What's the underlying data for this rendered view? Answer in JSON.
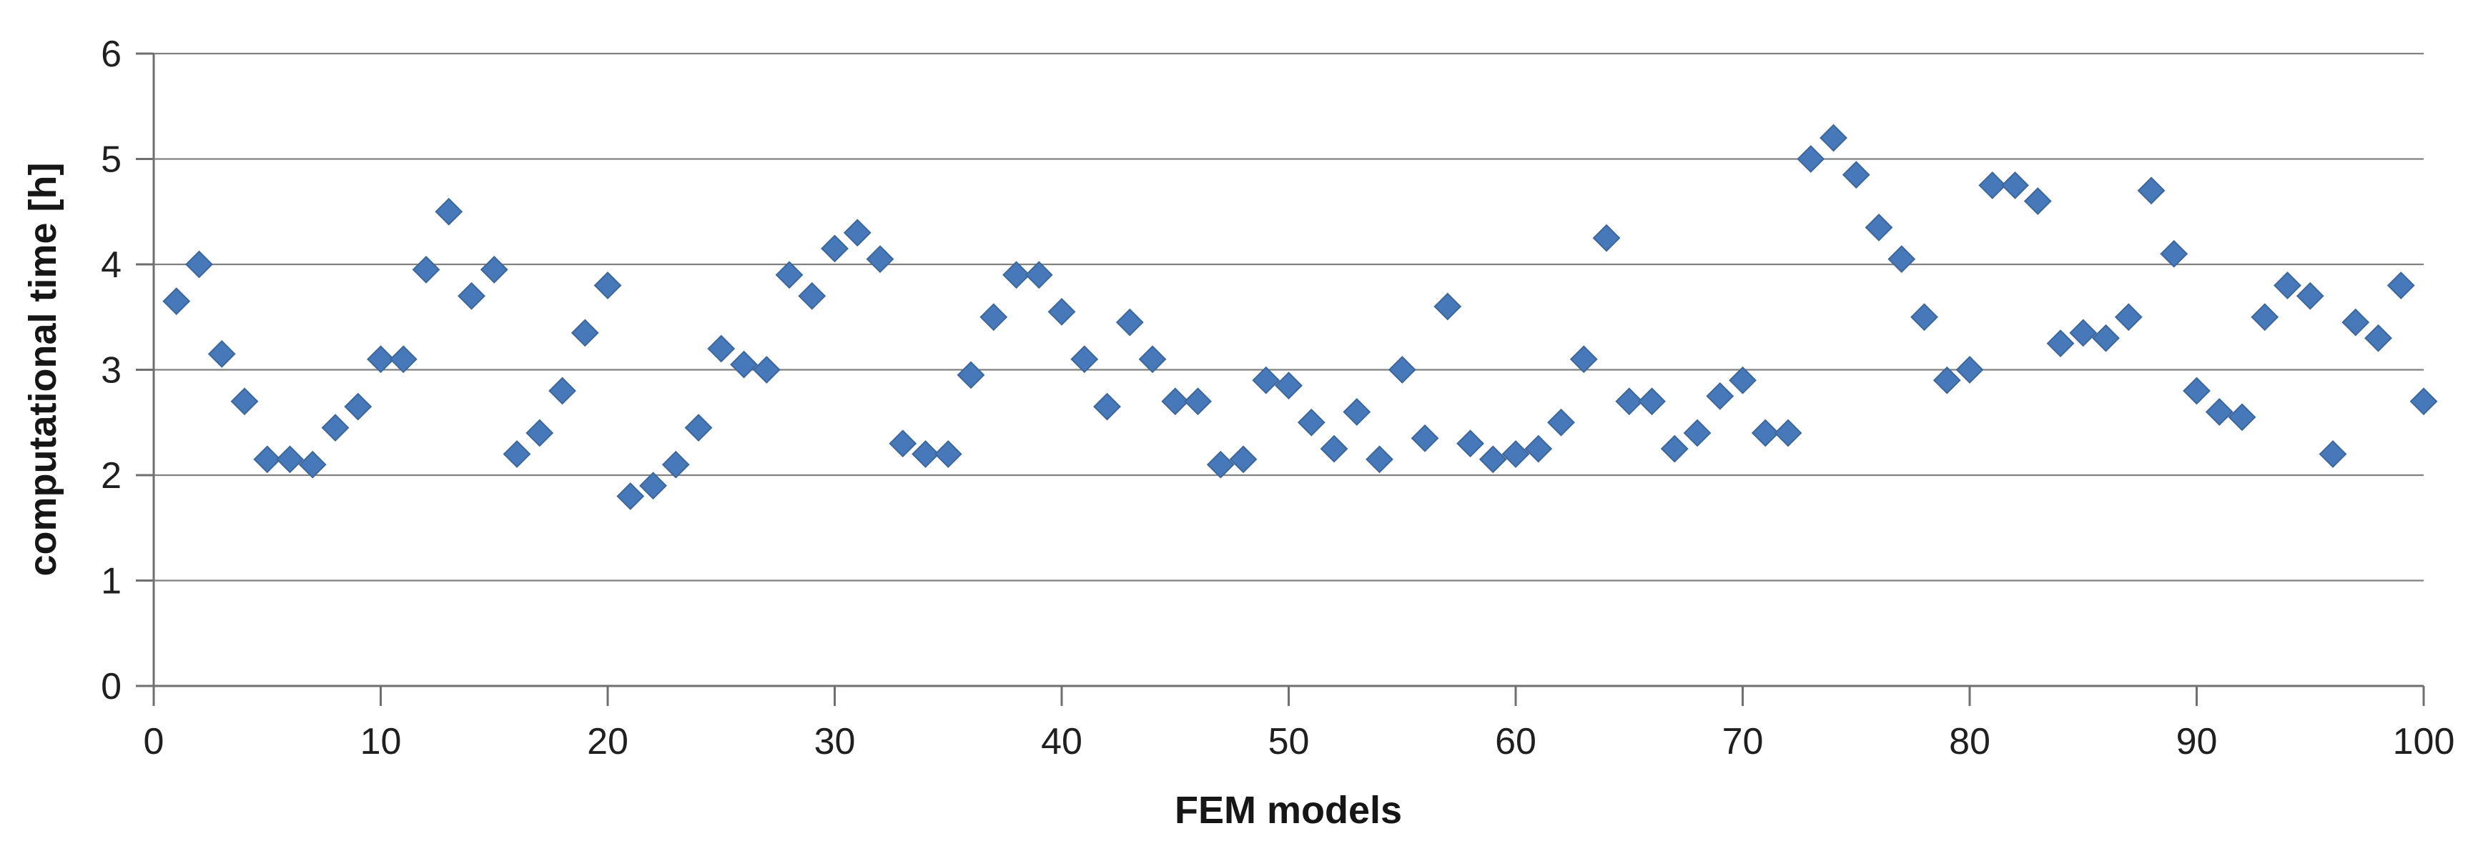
{
  "chart_data": {
    "type": "scatter",
    "title": "",
    "xlabel": "FEM models",
    "ylabel": "computational time [h]",
    "xlim": [
      0,
      100
    ],
    "ylim": [
      0,
      6
    ],
    "x_ticks": [
      0,
      10,
      20,
      30,
      40,
      50,
      60,
      70,
      80,
      90,
      100
    ],
    "y_ticks": [
      0,
      1,
      2,
      3,
      4,
      5,
      6
    ],
    "grid": "horizontal",
    "legend": "none",
    "marker": "diamond",
    "colors": {
      "marker_fill": "#4779BA",
      "marker_edge": "#3D6699",
      "gridline": "#818181",
      "axis": "#6F6F6F",
      "text": "#1f1f1f",
      "background": "#FFFFFF"
    },
    "series": [
      {
        "name": "computational time [h]",
        "x": [
          1,
          2,
          3,
          4,
          5,
          6,
          7,
          8,
          9,
          10,
          11,
          12,
          13,
          14,
          15,
          16,
          17,
          18,
          19,
          20,
          21,
          22,
          23,
          24,
          25,
          26,
          27,
          28,
          29,
          30,
          31,
          32,
          33,
          34,
          35,
          36,
          37,
          38,
          39,
          40,
          41,
          42,
          43,
          44,
          45,
          46,
          47,
          48,
          49,
          50,
          51,
          52,
          53,
          54,
          55,
          56,
          57,
          58,
          59,
          60,
          61,
          62,
          63,
          64,
          65,
          66,
          67,
          68,
          69,
          70,
          71,
          72,
          73,
          74,
          75,
          76,
          77,
          78,
          79,
          80,
          81,
          82,
          83,
          84,
          85,
          86,
          87,
          88,
          89,
          90,
          91,
          92,
          93,
          94,
          95,
          96,
          97,
          98,
          99,
          100
        ],
        "y": [
          3.65,
          4.0,
          3.15,
          2.7,
          2.15,
          2.15,
          2.1,
          2.45,
          2.65,
          3.1,
          3.1,
          3.95,
          4.5,
          3.7,
          3.95,
          2.2,
          2.4,
          2.8,
          3.35,
          3.8,
          1.8,
          1.9,
          2.1,
          2.45,
          3.2,
          3.05,
          3.0,
          3.9,
          3.7,
          4.15,
          4.3,
          4.05,
          2.3,
          2.2,
          2.2,
          2.95,
          3.5,
          3.9,
          3.9,
          3.55,
          3.1,
          2.65,
          3.45,
          3.1,
          2.7,
          2.7,
          2.1,
          2.15,
          2.9,
          2.85,
          2.5,
          2.25,
          2.6,
          2.15,
          3.0,
          2.35,
          3.6,
          2.3,
          2.15,
          2.2,
          2.25,
          2.5,
          3.1,
          4.25,
          2.7,
          2.7,
          2.25,
          2.4,
          2.75,
          2.9,
          2.4,
          2.4,
          5.0,
          5.2,
          4.85,
          4.35,
          4.05,
          3.5,
          2.9,
          3.0,
          4.75,
          4.75,
          4.6,
          3.25,
          3.35,
          3.3,
          3.5,
          4.7,
          4.1,
          2.8,
          2.6,
          2.55,
          3.5,
          3.8,
          3.7,
          2.2,
          3.45,
          3.3,
          3.8,
          2.7
        ]
      }
    ]
  }
}
